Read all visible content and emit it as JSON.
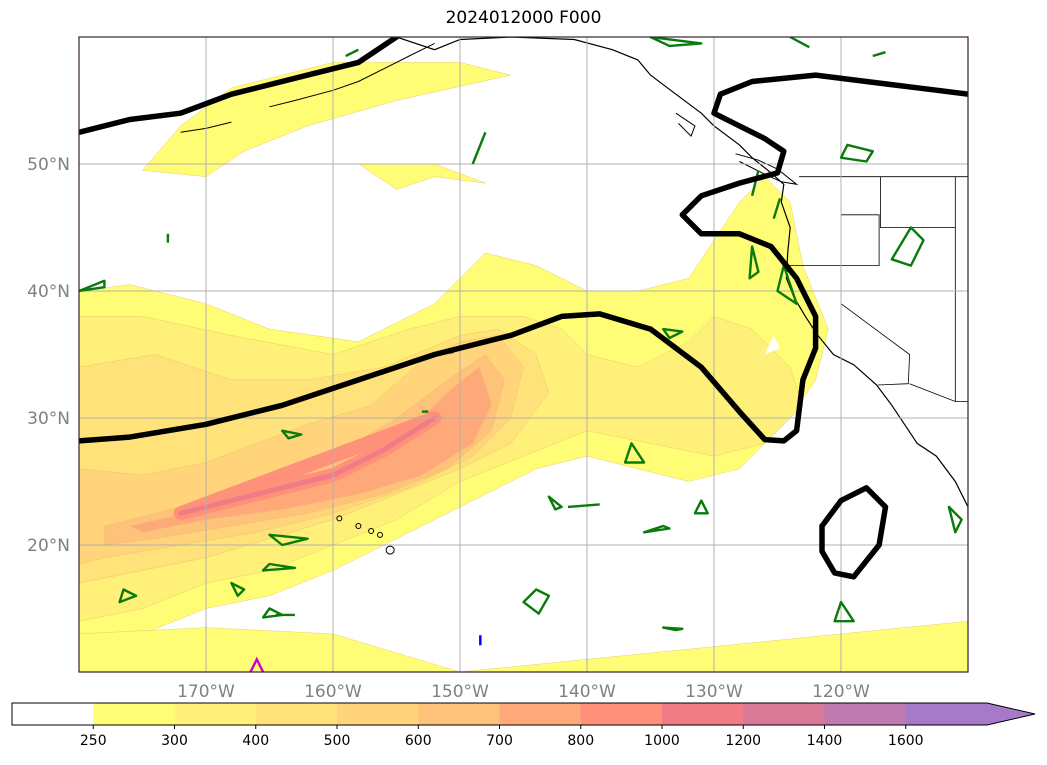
{
  "title": "2024012000 F000",
  "map": {
    "lon_range": [
      -180,
      -110
    ],
    "lat_range": [
      10,
      60
    ],
    "gridlines": true,
    "lon_ticks": [
      {
        "lon": -170,
        "label": "170°W"
      },
      {
        "lon": -160,
        "label": "160°W"
      },
      {
        "lon": -150,
        "label": "150°W"
      },
      {
        "lon": -140,
        "label": "140°W"
      },
      {
        "lon": -130,
        "label": "130°W"
      },
      {
        "lon": -120,
        "label": "120°W"
      }
    ],
    "lat_ticks": [
      {
        "lat": 20,
        "label": "20°N"
      },
      {
        "lat": 30,
        "label": "30°N"
      },
      {
        "lat": 40,
        "label": "40°N"
      },
      {
        "lat": 50,
        "label": "50°N"
      }
    ]
  },
  "colorbar": {
    "levels": [
      "250",
      "300",
      "400",
      "500",
      "600",
      "700",
      "800",
      "1000",
      "1200",
      "1400",
      "1600"
    ],
    "colors": [
      "#fffd76",
      "#fff07a",
      "#ffe27a",
      "#ffd47a",
      "#ffc27a",
      "#ffa97a",
      "#ff907a",
      "#f07c86",
      "#d87a98",
      "#bf7ab0",
      "#a67ac8"
    ],
    "extend": "max"
  },
  "colors": {
    "contour_line": "#000000",
    "green_contours": "#0a7a0a",
    "coastline": "#000000",
    "grid": "#b0b0b0"
  },
  "chart_data": {
    "type": "heatmap",
    "variable_levels": [
      250,
      300,
      400,
      500,
      600,
      700,
      800,
      1000,
      1200,
      1400,
      1600
    ],
    "regions": [
      {
        "level": 250,
        "points": [
          [
            -180,
            40
          ],
          [
            -176,
            40.5
          ],
          [
            -170,
            39
          ],
          [
            -165,
            37
          ],
          [
            -158,
            36
          ],
          [
            -152,
            39
          ],
          [
            -148,
            43
          ],
          [
            -144,
            42
          ],
          [
            -140,
            40
          ],
          [
            -136,
            40
          ],
          [
            -132,
            41
          ],
          [
            -130,
            44
          ],
          [
            -128,
            47
          ],
          [
            -126,
            49
          ],
          [
            -124,
            47
          ],
          [
            -123,
            42
          ],
          [
            -121,
            37
          ],
          [
            -122,
            33
          ],
          [
            -124,
            30
          ],
          [
            -128,
            26
          ],
          [
            -132,
            25
          ],
          [
            -136,
            26
          ],
          [
            -140,
            27
          ],
          [
            -144,
            26
          ],
          [
            -148,
            24
          ],
          [
            -152,
            22
          ],
          [
            -156,
            20
          ],
          [
            -160,
            18
          ],
          [
            -165,
            16
          ],
          [
            -170,
            15
          ],
          [
            -175,
            13
          ],
          [
            -180,
            11
          ]
        ]
      },
      {
        "level": 250,
        "points": [
          [
            -180,
            13
          ],
          [
            -170,
            13.5
          ],
          [
            -160,
            13
          ],
          [
            -150,
            10
          ],
          [
            -140,
            11
          ],
          [
            -130,
            12
          ],
          [
            -120,
            13
          ],
          [
            -110,
            14
          ],
          [
            -110,
            10
          ],
          [
            -180,
            10
          ]
        ]
      },
      {
        "level": 250,
        "points": [
          [
            -175,
            49.5
          ],
          [
            -172,
            53
          ],
          [
            -168,
            56
          ],
          [
            -160,
            58
          ],
          [
            -150,
            58
          ],
          [
            -146,
            57
          ],
          [
            -155,
            55
          ],
          [
            -162,
            53
          ],
          [
            -167,
            51
          ],
          [
            -170,
            49
          ]
        ]
      },
      {
        "level": 250,
        "points": [
          [
            -158,
            50
          ],
          [
            -152,
            50
          ],
          [
            -148,
            48.5
          ],
          [
            -152,
            49
          ],
          [
            -155,
            48
          ]
        ]
      },
      {
        "level": 300,
        "points": [
          [
            -180,
            38
          ],
          [
            -175,
            38
          ],
          [
            -168,
            36.5
          ],
          [
            -160,
            35
          ],
          [
            -154,
            37
          ],
          [
            -150,
            38
          ],
          [
            -145,
            38
          ],
          [
            -142,
            37
          ],
          [
            -140,
            35
          ],
          [
            -136,
            34
          ],
          [
            -132,
            36
          ],
          [
            -130,
            38
          ],
          [
            -127,
            37
          ],
          [
            -124,
            34
          ],
          [
            -123,
            31
          ],
          [
            -126,
            28
          ],
          [
            -130,
            27
          ],
          [
            -135,
            28
          ],
          [
            -140,
            29
          ],
          [
            -145,
            27
          ],
          [
            -150,
            25
          ],
          [
            -155,
            22
          ],
          [
            -160,
            20
          ],
          [
            -165,
            18
          ],
          [
            -170,
            17
          ],
          [
            -175,
            15
          ],
          [
            -180,
            14
          ]
        ]
      },
      {
        "level": 400,
        "points": [
          [
            -180,
            34
          ],
          [
            -174,
            35
          ],
          [
            -168,
            33
          ],
          [
            -162,
            33
          ],
          [
            -156,
            34
          ],
          [
            -150,
            36.5
          ],
          [
            -147,
            37
          ],
          [
            -144,
            35
          ],
          [
            -143,
            32
          ],
          [
            -146,
            28
          ],
          [
            -150,
            26
          ],
          [
            -155,
            24
          ],
          [
            -160,
            22
          ],
          [
            -165,
            20.5
          ],
          [
            -170,
            19
          ],
          [
            -175,
            18
          ],
          [
            -180,
            17
          ]
        ]
      },
      {
        "level": 500,
        "points": [
          [
            -180,
            26
          ],
          [
            -175,
            25.5
          ],
          [
            -170,
            26.5
          ],
          [
            -166,
            28
          ],
          [
            -162,
            29.5
          ],
          [
            -157,
            31
          ],
          [
            -153,
            34.5
          ],
          [
            -150,
            36
          ],
          [
            -147,
            36.5
          ],
          [
            -145,
            34
          ],
          [
            -146,
            30
          ],
          [
            -149,
            27
          ],
          [
            -154,
            24.5
          ],
          [
            -160,
            22.5
          ],
          [
            -166,
            21
          ],
          [
            -172,
            20
          ],
          [
            -178,
            19
          ],
          [
            -180,
            18.5
          ]
        ]
      },
      {
        "level": 600,
        "points": [
          [
            -178,
            21.5
          ],
          [
            -172,
            23
          ],
          [
            -166,
            25
          ],
          [
            -160,
            27
          ],
          [
            -155,
            30
          ],
          [
            -151,
            33
          ],
          [
            -148,
            35
          ],
          [
            -146.5,
            33
          ],
          [
            -147.5,
            29
          ],
          [
            -151,
            26
          ],
          [
            -156,
            24
          ],
          [
            -162,
            22.5
          ],
          [
            -168,
            21.5
          ],
          [
            -174,
            20.5
          ],
          [
            -178,
            20
          ]
        ]
      },
      {
        "level": 700,
        "points": [
          [
            -176,
            21.5
          ],
          [
            -170,
            22.8
          ],
          [
            -164,
            24.5
          ],
          [
            -158,
            26.5
          ],
          [
            -154,
            29
          ],
          [
            -151,
            32
          ],
          [
            -148.5,
            34
          ],
          [
            -147.5,
            31
          ],
          [
            -149,
            28
          ],
          [
            -153,
            25.5
          ],
          [
            -158,
            24
          ],
          [
            -164,
            22.8
          ],
          [
            -170,
            22
          ],
          [
            -175,
            21
          ]
        ]
      },
      {
        "level": 800,
        "points": [
          [
            -172,
            22.5
          ],
          [
            -166,
            24
          ],
          [
            -160,
            25.5
          ],
          [
            -156,
            27.5
          ],
          [
            -152,
            30
          ]
        ]
      }
    ],
    "black_contours": [
      [
        [
          -180,
          28.2
        ],
        [
          -176,
          28.5
        ],
        [
          -170,
          29.5
        ],
        [
          -164,
          31
        ],
        [
          -158,
          33
        ],
        [
          -152,
          35
        ],
        [
          -146,
          36.5
        ],
        [
          -142,
          38
        ],
        [
          -139,
          38.2
        ],
        [
          -135,
          37
        ],
        [
          -131,
          34
        ],
        [
          -128,
          30.5
        ],
        [
          -126,
          28.3
        ],
        [
          -124.5,
          28.2
        ],
        [
          -123.5,
          29
        ],
        [
          -123,
          33
        ],
        [
          -122,
          35.5
        ],
        [
          -122,
          38
        ],
        [
          -123.5,
          41
        ],
        [
          -125.5,
          43.5
        ],
        [
          -128,
          44.5
        ],
        [
          -131,
          44.5
        ],
        [
          -132.5,
          46
        ],
        [
          -131,
          47.5
        ],
        [
          -128,
          48.5
        ],
        [
          -125,
          49.3
        ],
        [
          -124.5,
          51
        ],
        [
          -126,
          52
        ],
        [
          -128,
          53
        ],
        [
          -130,
          54
        ],
        [
          -129.5,
          55.5
        ],
        [
          -127,
          56.5
        ],
        [
          -122,
          57
        ],
        [
          -118,
          56.5
        ],
        [
          -114,
          56
        ],
        [
          -110,
          55.5
        ]
      ],
      [
        [
          -180,
          52.5
        ],
        [
          -176,
          53.5
        ],
        [
          -172,
          54
        ],
        [
          -168,
          55.5
        ],
        [
          -162,
          57
        ],
        [
          -158,
          58
        ],
        [
          -155,
          60
        ]
      ],
      [
        [
          -121.5,
          21.5
        ],
        [
          -120,
          23.5
        ],
        [
          -118,
          24.5
        ],
        [
          -116.5,
          23
        ],
        [
          -117,
          20
        ],
        [
          -119,
          17.5
        ],
        [
          -120.5,
          17.8
        ],
        [
          -121.5,
          19.5
        ]
      ]
    ],
    "green_contours": [
      [
        [
          -119.5,
          51.5
        ],
        [
          -117.5,
          51
        ],
        [
          -118,
          50.2
        ],
        [
          -120,
          50.5
        ]
      ],
      [
        [
          -114.5,
          45
        ],
        [
          -113.5,
          44
        ],
        [
          -114.5,
          42
        ],
        [
          -116,
          42.5
        ]
      ],
      [
        [
          -127,
          43.5
        ],
        [
          -126.5,
          41.5
        ],
        [
          -127.2,
          41
        ]
      ],
      [
        [
          -124.5,
          42
        ],
        [
          -123.5,
          39
        ],
        [
          -125,
          40
        ]
      ],
      [
        [
          -134,
          37
        ],
        [
          -132.5,
          36.8
        ],
        [
          -133.5,
          36.3
        ]
      ],
      [
        [
          -136.5,
          28
        ],
        [
          -135.5,
          26.5
        ],
        [
          -137,
          26.5
        ]
      ],
      [
        [
          -142,
          23
        ],
        [
          -143,
          23.8
        ],
        [
          -142.5,
          22.8
        ]
      ],
      [
        [
          -141.5,
          23
        ],
        [
          -139,
          23.2
        ]
      ],
      [
        [
          -131,
          23.5
        ],
        [
          -130.5,
          22.5
        ],
        [
          -131.5,
          22.5
        ]
      ],
      [
        [
          -134,
          21.5
        ],
        [
          -135.5,
          21
        ],
        [
          -133.5,
          21.3
        ]
      ],
      [
        [
          -143,
          16
        ],
        [
          -144,
          16.5
        ],
        [
          -145,
          15.5
        ],
        [
          -143.8,
          14.6
        ]
      ],
      [
        [
          -120,
          15.5
        ],
        [
          -119,
          14
        ],
        [
          -120.5,
          14
        ]
      ],
      [
        [
          -111.5,
          23
        ],
        [
          -110.5,
          22
        ],
        [
          -111,
          21
        ]
      ],
      [
        [
          -162,
          20.5
        ],
        [
          -165,
          20.8
        ],
        [
          -164,
          20
        ]
      ],
      [
        [
          -168,
          17
        ],
        [
          -167,
          16.5
        ],
        [
          -167.5,
          16
        ]
      ],
      [
        [
          -176.5,
          16.5
        ],
        [
          -175.5,
          16
        ],
        [
          -176.8,
          15.5
        ]
      ],
      [
        [
          -165,
          15
        ],
        [
          -164,
          14.5
        ],
        [
          -165.5,
          14.3
        ]
      ],
      [
        [
          -180,
          40
        ],
        [
          -178,
          40.3
        ],
        [
          -178,
          40.8
        ]
      ],
      [
        [
          -165,
          18.5
        ],
        [
          -163,
          18.2
        ],
        [
          -165.5,
          18
        ]
      ],
      [
        [
          -134,
          13.5
        ],
        [
          -133,
          13.3
        ],
        [
          -132.5,
          13.4
        ]
      ],
      [
        [
          -127,
          47.5
        ],
        [
          -126.5,
          49.5
        ]
      ],
      [
        [
          -125.3,
          45.7
        ],
        [
          -124.8,
          47.3
        ]
      ],
      [
        [
          -135,
          60
        ],
        [
          -133.5,
          59.3
        ],
        [
          -131,
          59.5
        ]
      ],
      [
        [
          -124,
          60
        ],
        [
          -122.5,
          59.2
        ]
      ],
      [
        [
          -117.5,
          58.5
        ],
        [
          -116.5,
          58.8
        ]
      ],
      [
        [
          -173,
          44.5
        ],
        [
          -173,
          43.8
        ]
      ],
      [
        [
          -152,
          35
        ],
        [
          -150.5,
          35.2
        ]
      ],
      [
        [
          -153,
          30.5
        ],
        [
          -152.5,
          30.5
        ]
      ],
      [
        [
          -164,
          29
        ],
        [
          -162.5,
          28.7
        ],
        [
          -163.5,
          28.4
        ]
      ],
      [
        [
          -164.5,
          14.5
        ],
        [
          -163,
          14.5
        ]
      ],
      [
        [
          -159,
          58.5
        ],
        [
          -158,
          59
        ]
      ],
      [
        [
          -148,
          52.5
        ],
        [
          -149,
          50
        ]
      ]
    ],
    "small_blue_mark": {
      "lon": -148.4,
      "lat": 12.5
    },
    "magenta_mark": [
      [
        -166.5,
        10
      ],
      [
        -166,
        11
      ],
      [
        -165.5,
        10
      ]
    ]
  }
}
